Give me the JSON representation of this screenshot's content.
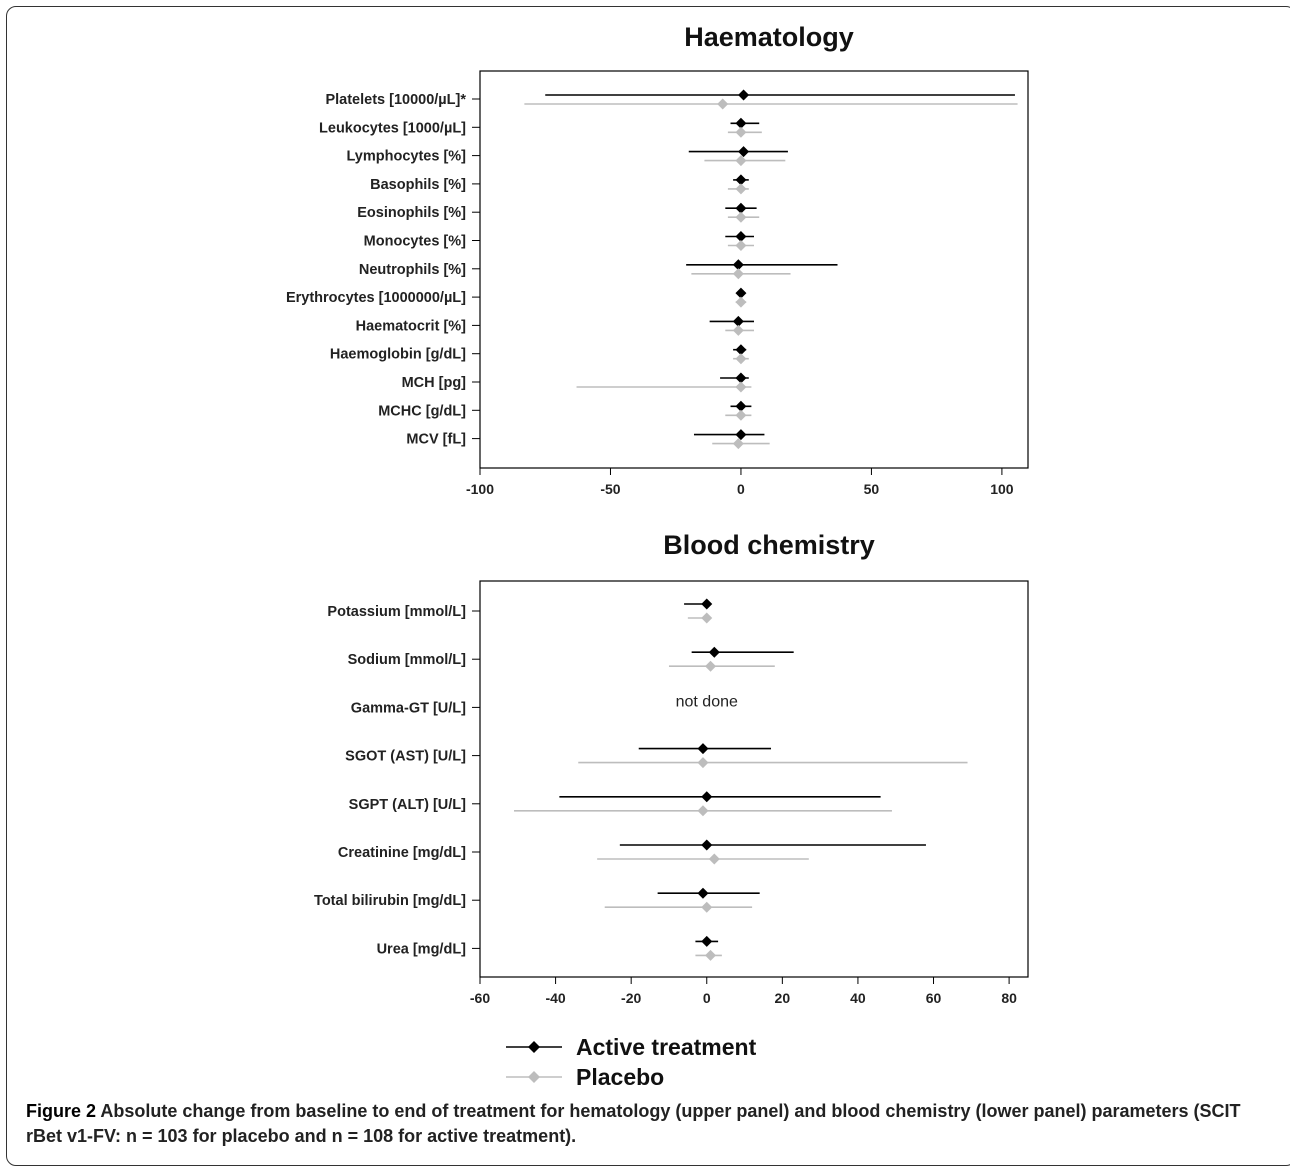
{
  "chart_data": [
    {
      "type": "forest",
      "title": "Haematology",
      "xlim": [
        -100,
        110
      ],
      "xticks": [
        -100,
        -50,
        0,
        50,
        100
      ],
      "grid": false,
      "categories": [
        "Platelets [10000/µL]*",
        "Leukocytes [1000/µL]",
        "Lymphocytes [%]",
        "Basophils [%]",
        "Eosinophils [%]",
        "Monocytes [%]",
        "Neutrophils [%]",
        "Erythrocytes [1000000/µL]",
        "Haematocrit [%]",
        "Haemoglobin [g/dL]",
        "MCH [pg]",
        "MCHC [g/dL]",
        "MCV [fL]"
      ],
      "series": [
        {
          "name": "Active treatment",
          "color": "#000000",
          "points": [
            {
              "est": 1,
              "low": -75,
              "high": 105
            },
            {
              "est": 0,
              "low": -4,
              "high": 7
            },
            {
              "est": 1,
              "low": -20,
              "high": 18
            },
            {
              "est": 0,
              "low": -3,
              "high": 3
            },
            {
              "est": 0,
              "low": -6,
              "high": 6
            },
            {
              "est": 0,
              "low": -6,
              "high": 5
            },
            {
              "est": -1,
              "low": -21,
              "high": 37
            },
            {
              "est": 0,
              "low": -1,
              "high": 1
            },
            {
              "est": -1,
              "low": -12,
              "high": 5
            },
            {
              "est": 0,
              "low": -3,
              "high": 2
            },
            {
              "est": 0,
              "low": -8,
              "high": 3
            },
            {
              "est": 0,
              "low": -4,
              "high": 4
            },
            {
              "est": 0,
              "low": -18,
              "high": 9
            }
          ]
        },
        {
          "name": "Placebo",
          "color": "#bdbdbd",
          "points": [
            {
              "est": -7,
              "low": -83,
              "high": 106
            },
            {
              "est": 0,
              "low": -5,
              "high": 8
            },
            {
              "est": 0,
              "low": -14,
              "high": 17
            },
            {
              "est": 0,
              "low": -5,
              "high": 3
            },
            {
              "est": 0,
              "low": -5,
              "high": 7
            },
            {
              "est": 0,
              "low": -5,
              "high": 5
            },
            {
              "est": -1,
              "low": -19,
              "high": 19
            },
            {
              "est": 0,
              "low": -2,
              "high": 2
            },
            {
              "est": -1,
              "low": -6,
              "high": 5
            },
            {
              "est": 0,
              "low": -3,
              "high": 3
            },
            {
              "est": 0,
              "low": -63,
              "high": 4
            },
            {
              "est": 0,
              "low": -6,
              "high": 4
            },
            {
              "est": -1,
              "low": -11,
              "high": 11
            }
          ]
        }
      ]
    },
    {
      "type": "forest",
      "title": "Blood chemistry",
      "xlim": [
        -60,
        85
      ],
      "xticks": [
        -60,
        -40,
        -20,
        0,
        20,
        40,
        60,
        80
      ],
      "grid": false,
      "categories": [
        "Potassium [mmol/L]",
        "Sodium [mmol/L]",
        "Gamma-GT [U/L]",
        "SGOT (AST) [U/L]",
        "SGPT (ALT) [U/L]",
        "Creatinine [mg/dL]",
        "Total bilirubin [mg/dL]",
        "Urea [mg/dL]"
      ],
      "annotations": [
        {
          "category_index": 2,
          "x": 0,
          "text": "not done"
        }
      ],
      "series": [
        {
          "name": "Active treatment",
          "color": "#000000",
          "points": [
            {
              "est": 0,
              "low": -6,
              "high": 0
            },
            {
              "est": 2,
              "low": -4,
              "high": 23
            },
            null,
            {
              "est": -1,
              "low": -18,
              "high": 17
            },
            {
              "est": 0,
              "low": -39,
              "high": 46
            },
            {
              "est": 0,
              "low": -23,
              "high": 58
            },
            {
              "est": -1,
              "low": -13,
              "high": 14
            },
            {
              "est": 0,
              "low": -3,
              "high": 3
            }
          ]
        },
        {
          "name": "Placebo",
          "color": "#bdbdbd",
          "points": [
            {
              "est": 0,
              "low": -5,
              "high": 1
            },
            {
              "est": 1,
              "low": -10,
              "high": 18
            },
            null,
            {
              "est": -1,
              "low": -34,
              "high": 69
            },
            {
              "est": -1,
              "low": -51,
              "high": 49
            },
            {
              "est": 2,
              "low": -29,
              "high": 27
            },
            {
              "est": 0,
              "low": -27,
              "high": 12
            },
            {
              "est": 1,
              "low": -3,
              "high": 4
            }
          ]
        }
      ]
    }
  ],
  "legend": {
    "placement": "bottom-center",
    "items": [
      {
        "label": "Active treatment",
        "color": "#000000"
      },
      {
        "label": "Placebo",
        "color": "#bdbdbd"
      }
    ]
  },
  "caption": {
    "label": "Figure 2",
    "text": " Absolute change from baseline to end of treatment for hematology (upper panel) and blood chemistry (lower panel) parameters (SCIT rBet v1-FV: n = 103 for placebo and n = 108 for active treatment)."
  }
}
